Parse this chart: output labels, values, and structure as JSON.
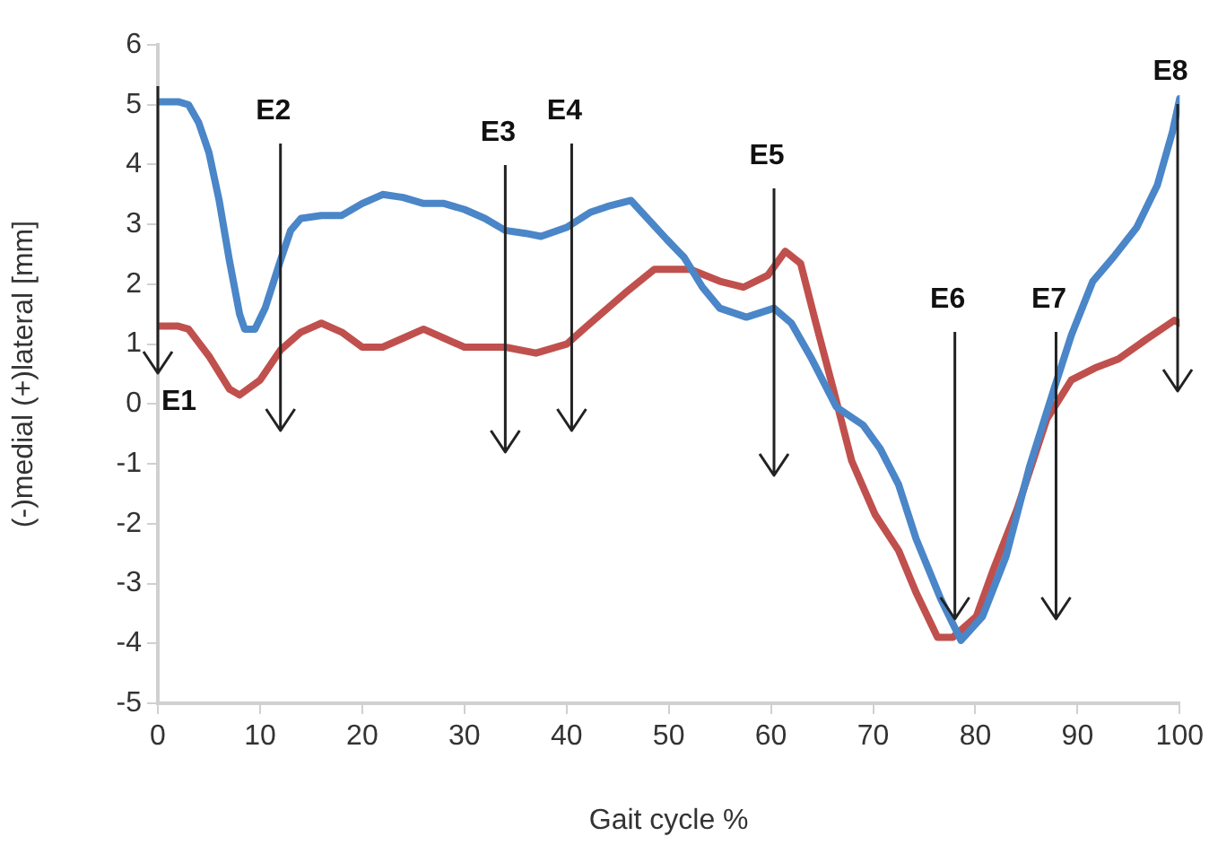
{
  "chart_data": {
    "type": "line",
    "xlabel": "Gait cycle %",
    "ylabel": "(-)medial (+)lateral [mm]",
    "xlim": [
      0,
      100
    ],
    "xticks": [
      0,
      10,
      20,
      30,
      40,
      50,
      60,
      70,
      80,
      90,
      100
    ],
    "ylim": [
      -5,
      6
    ],
    "yticks": [
      -5,
      -4,
      -3,
      -2,
      -1,
      0,
      1,
      2,
      3,
      4,
      5,
      6
    ],
    "grid": false,
    "legend": false,
    "marker": "none",
    "line_style": "solid",
    "series": [
      {
        "color": "#4a86c8",
        "x": [
          0,
          2,
          3,
          4,
          5,
          6,
          7,
          8,
          8.5,
          9.5,
          10.5,
          12,
          13,
          14,
          16,
          18,
          20,
          22,
          24,
          26,
          28,
          30,
          32,
          34,
          36,
          37.5,
          40,
          42.3,
          44,
          46.3,
          49.8,
          51.5,
          53.3,
          55,
          57.6,
          60.3,
          62,
          64,
          66.4,
          69,
          70.7,
          72.5,
          74.2,
          76.6,
          78.6,
          80.7,
          83,
          85.3,
          87.7,
          89.4,
          91.5,
          93.5,
          95.8,
          97.8,
          99.3,
          100
        ],
        "values": [
          5.05,
          5.05,
          5,
          4.7,
          4.2,
          3.4,
          2.4,
          1.5,
          1.25,
          1.25,
          1.6,
          2.4,
          2.9,
          3.1,
          3.15,
          3.15,
          3.35,
          3.5,
          3.45,
          3.35,
          3.35,
          3.25,
          3.1,
          2.9,
          2.85,
          2.8,
          2.95,
          3.2,
          3.3,
          3.4,
          2.75,
          2.45,
          1.95,
          1.6,
          1.45,
          1.6,
          1.35,
          0.75,
          -0.05,
          -0.35,
          -0.75,
          -1.35,
          -2.25,
          -3.25,
          -3.95,
          -3.55,
          -2.55,
          -1.05,
          0.25,
          1.15,
          2.05,
          2.45,
          2.95,
          3.65,
          4.55,
          5.1
        ]
      },
      {
        "color": "#c0504d",
        "x": [
          0,
          2,
          3,
          5,
          7,
          8,
          10,
          12,
          14,
          16,
          18,
          20,
          22,
          24,
          26,
          28,
          30,
          34,
          37,
          40,
          42,
          45.7,
          48.6,
          52.1,
          55,
          57.3,
          59.7,
          61.4,
          62.9,
          64.4,
          66.1,
          67.9,
          70.2,
          72.5,
          74.2,
          76.3,
          77.8,
          80.1,
          81.8,
          84.1,
          87,
          89.4,
          91.7,
          94,
          96.9,
          99.5,
          100
        ],
        "values": [
          1.3,
          1.3,
          1.25,
          0.8,
          0.25,
          0.15,
          0.4,
          0.9,
          1.2,
          1.35,
          1.2,
          0.95,
          0.95,
          1.1,
          1.25,
          1.1,
          0.95,
          0.95,
          0.85,
          1,
          1.3,
          1.85,
          2.25,
          2.25,
          2.05,
          1.95,
          2.15,
          2.55,
          2.35,
          1.35,
          0.25,
          -0.95,
          -1.85,
          -2.45,
          -3.15,
          -3.9,
          -3.9,
          -3.55,
          -2.75,
          -1.75,
          -0.25,
          0.4,
          0.6,
          0.75,
          1.1,
          1.4,
          1.35
        ]
      }
    ],
    "ref_lines": [
      {
        "axis": "x",
        "value": 0,
        "label": "E1"
      },
      {
        "axis": "x",
        "value": 12,
        "label": "E2"
      },
      {
        "axis": "x",
        "value": 34,
        "label": "E3"
      },
      {
        "axis": "x",
        "value": 40.5,
        "label": "E4"
      },
      {
        "axis": "x",
        "value": 60.3,
        "label": "E5"
      },
      {
        "axis": "x",
        "value": 78,
        "label": "E6"
      },
      {
        "axis": "x",
        "value": 87.9,
        "label": "E7"
      },
      {
        "axis": "x",
        "value": 99.8,
        "label": "E8"
      }
    ]
  }
}
